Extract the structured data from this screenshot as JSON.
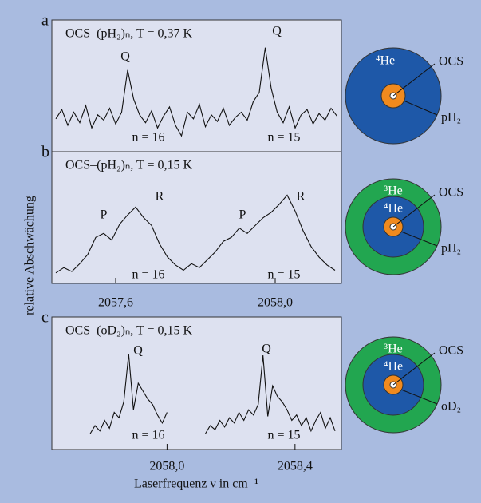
{
  "chart_data": [
    {
      "type": "line",
      "panel": "a",
      "title": "OCS–(pH₂)ₙ, T = 0,37 K",
      "color": "#111111",
      "xlim": [
        2057.44,
        2058.166
      ],
      "ylim": [
        0,
        100
      ],
      "x": [
        2057.45,
        2057.465,
        2057.48,
        2057.495,
        2057.51,
        2057.525,
        2057.54,
        2057.555,
        2057.57,
        2057.585,
        2057.6,
        2057.615,
        2057.63,
        2057.645,
        2057.66,
        2057.675,
        2057.69,
        2057.705,
        2057.72,
        2057.735,
        2057.75,
        2057.765,
        2057.78,
        2057.795,
        2057.81,
        2057.825,
        2057.84,
        2057.855,
        2057.87,
        2057.885,
        2057.9,
        2057.915,
        2057.93,
        2057.945,
        2057.96,
        2057.975,
        2057.99,
        2058.005,
        2058.02,
        2058.035,
        2058.05,
        2058.065,
        2058.08,
        2058.095,
        2058.11,
        2058.125,
        2058.14,
        2058.155
      ],
      "values": [
        25,
        32,
        20,
        30,
        22,
        35,
        18,
        28,
        24,
        33,
        21,
        30,
        62,
        40,
        28,
        22,
        31,
        18,
        27,
        34,
        20,
        12,
        30,
        25,
        36,
        19,
        28,
        23,
        33,
        20,
        26,
        30,
        24,
        38,
        45,
        79,
        48,
        30,
        22,
        34,
        18,
        28,
        32,
        21,
        29,
        24,
        33,
        27
      ],
      "annotations": [
        "Q",
        "Q",
        "n = 16",
        "n = 15"
      ],
      "diagram": [
        "⁴He",
        "OCS",
        "pH₂"
      ]
    },
    {
      "type": "line",
      "panel": "b",
      "title": "OCS–(pH₂)ₙ, T = 0,15 K",
      "color": "#111111",
      "xlim": [
        2057.44,
        2058.166
      ],
      "ylim": [
        0,
        100
      ],
      "xticks": [
        {
          "value": 2057.6,
          "label": "2057,6"
        },
        {
          "value": 2058.0,
          "label": "2058,0"
        }
      ],
      "ylabel": "relative Abschwächung",
      "x": [
        2057.45,
        2057.47,
        2057.49,
        2057.51,
        2057.53,
        2057.55,
        2057.57,
        2057.59,
        2057.61,
        2057.63,
        2057.65,
        2057.67,
        2057.69,
        2057.71,
        2057.73,
        2057.75,
        2057.77,
        2057.79,
        2057.81,
        2057.83,
        2057.85,
        2057.87,
        2057.89,
        2057.91,
        2057.93,
        2057.95,
        2057.97,
        2057.99,
        2058.01,
        2058.03,
        2058.05,
        2058.07,
        2058.09,
        2058.11,
        2058.13,
        2058.15
      ],
      "values": [
        8,
        12,
        9,
        15,
        22,
        35,
        38,
        33,
        45,
        52,
        58,
        50,
        44,
        30,
        20,
        14,
        10,
        15,
        12,
        18,
        24,
        32,
        35,
        42,
        38,
        44,
        50,
        54,
        60,
        67,
        55,
        40,
        28,
        20,
        14,
        10
      ],
      "annotations": [
        "P",
        "R",
        "P",
        "R",
        "n = 16",
        "n = 15"
      ],
      "diagram": [
        "³He",
        "⁴He",
        "OCS",
        "pH₂"
      ]
    },
    {
      "type": "line",
      "panel": "c",
      "title": "OCS–(oD₂)ₙ, T = 0,15 K",
      "color": "#111111",
      "xlim": [
        2057.64,
        2058.545
      ],
      "ylim": [
        0,
        100
      ],
      "xticks": [
        {
          "value": 2058.0,
          "label": "2058,0"
        },
        {
          "value": 2058.4,
          "label": "2058,4"
        }
      ],
      "xlabel": "Laserfrequenz ν in cm⁻¹",
      "x": [
        2057.76,
        2057.775,
        2057.79,
        2057.805,
        2057.82,
        2057.835,
        2057.85,
        2057.865,
        2057.88,
        2057.895,
        2057.91,
        2057.925,
        2057.94,
        2057.955,
        2057.97,
        2057.985,
        2058.0,
        2058.06,
        2058.12,
        2058.135,
        2058.15,
        2058.165,
        2058.18,
        2058.195,
        2058.21,
        2058.225,
        2058.24,
        2058.255,
        2058.27,
        2058.285,
        2058.3,
        2058.315,
        2058.33,
        2058.345,
        2058.36,
        2058.375,
        2058.39,
        2058.405,
        2058.42,
        2058.435,
        2058.45,
        2058.465,
        2058.48,
        2058.495,
        2058.51,
        2058.525
      ],
      "values": [
        12,
        18,
        14,
        22,
        16,
        28,
        24,
        36,
        72,
        30,
        50,
        44,
        38,
        34,
        26,
        20,
        28,
        null,
        12,
        18,
        15,
        22,
        17,
        24,
        20,
        28,
        22,
        30,
        26,
        34,
        71,
        25,
        48,
        40,
        36,
        30,
        22,
        26,
        18,
        24,
        14,
        22,
        28,
        16,
        24,
        14
      ],
      "annotations": [
        "Q",
        "Q",
        "n = 16",
        "n = 15"
      ],
      "diagram": [
        "³He",
        "⁴He",
        "OCS",
        "oD₂"
      ]
    }
  ]
}
